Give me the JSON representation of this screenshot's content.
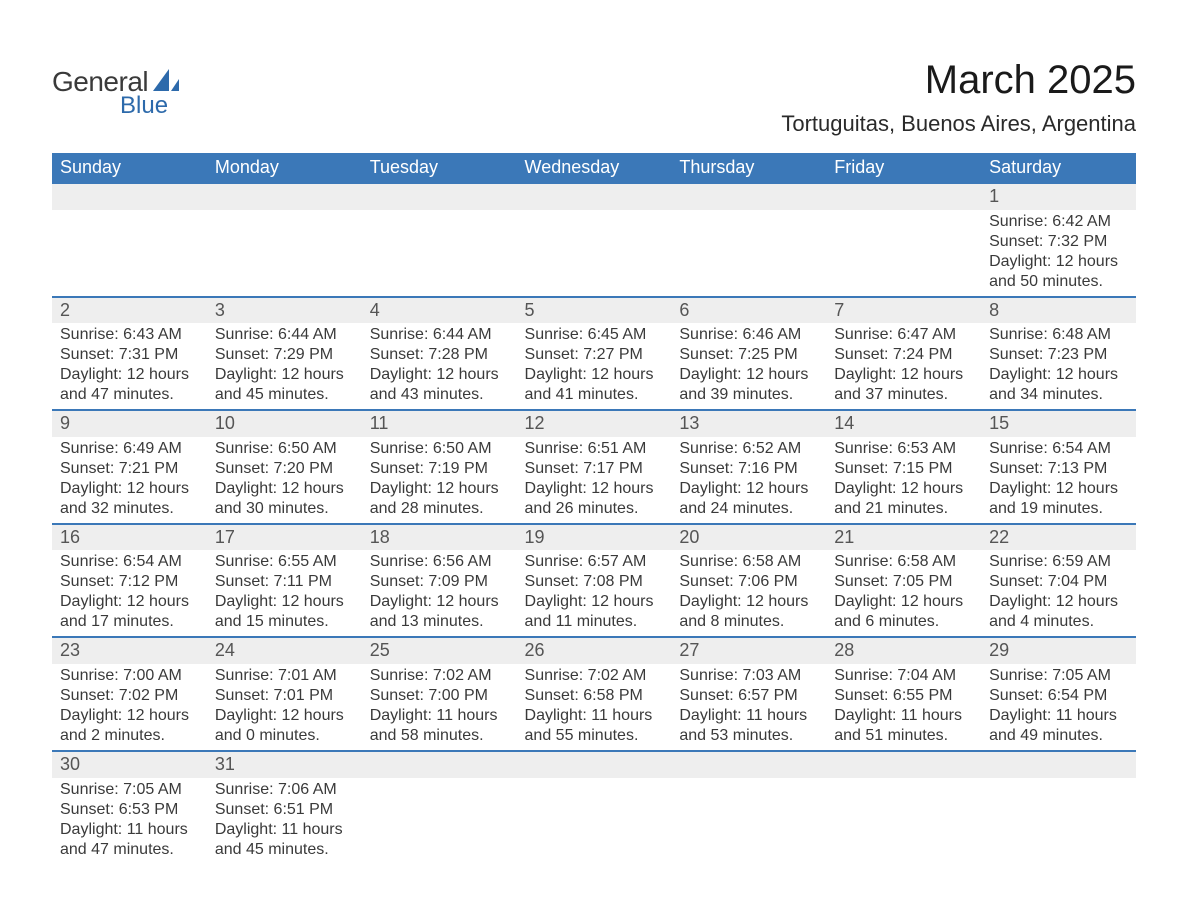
{
  "logo": {
    "word1": "General",
    "word2": "Blue",
    "sail_color": "#2d6aab"
  },
  "title": "March 2025",
  "location": "Tortuguitas, Buenos Aires, Argentina",
  "colors": {
    "header_bg": "#3b78b8",
    "header_text": "#ffffff",
    "daynum_bg": "#eeeeee",
    "rule": "#3b78b8",
    "body_text": "#3a3a3a"
  },
  "daynames": [
    "Sunday",
    "Monday",
    "Tuesday",
    "Wednesday",
    "Thursday",
    "Friday",
    "Saturday"
  ],
  "weeks": [
    [
      null,
      null,
      null,
      null,
      null,
      null,
      {
        "n": "1",
        "sunrise": "Sunrise: 6:42 AM",
        "sunset": "Sunset: 7:32 PM",
        "dl1": "Daylight: 12 hours",
        "dl2": "and 50 minutes."
      }
    ],
    [
      {
        "n": "2",
        "sunrise": "Sunrise: 6:43 AM",
        "sunset": "Sunset: 7:31 PM",
        "dl1": "Daylight: 12 hours",
        "dl2": "and 47 minutes."
      },
      {
        "n": "3",
        "sunrise": "Sunrise: 6:44 AM",
        "sunset": "Sunset: 7:29 PM",
        "dl1": "Daylight: 12 hours",
        "dl2": "and 45 minutes."
      },
      {
        "n": "4",
        "sunrise": "Sunrise: 6:44 AM",
        "sunset": "Sunset: 7:28 PM",
        "dl1": "Daylight: 12 hours",
        "dl2": "and 43 minutes."
      },
      {
        "n": "5",
        "sunrise": "Sunrise: 6:45 AM",
        "sunset": "Sunset: 7:27 PM",
        "dl1": "Daylight: 12 hours",
        "dl2": "and 41 minutes."
      },
      {
        "n": "6",
        "sunrise": "Sunrise: 6:46 AM",
        "sunset": "Sunset: 7:25 PM",
        "dl1": "Daylight: 12 hours",
        "dl2": "and 39 minutes."
      },
      {
        "n": "7",
        "sunrise": "Sunrise: 6:47 AM",
        "sunset": "Sunset: 7:24 PM",
        "dl1": "Daylight: 12 hours",
        "dl2": "and 37 minutes."
      },
      {
        "n": "8",
        "sunrise": "Sunrise: 6:48 AM",
        "sunset": "Sunset: 7:23 PM",
        "dl1": "Daylight: 12 hours",
        "dl2": "and 34 minutes."
      }
    ],
    [
      {
        "n": "9",
        "sunrise": "Sunrise: 6:49 AM",
        "sunset": "Sunset: 7:21 PM",
        "dl1": "Daylight: 12 hours",
        "dl2": "and 32 minutes."
      },
      {
        "n": "10",
        "sunrise": "Sunrise: 6:50 AM",
        "sunset": "Sunset: 7:20 PM",
        "dl1": "Daylight: 12 hours",
        "dl2": "and 30 minutes."
      },
      {
        "n": "11",
        "sunrise": "Sunrise: 6:50 AM",
        "sunset": "Sunset: 7:19 PM",
        "dl1": "Daylight: 12 hours",
        "dl2": "and 28 minutes."
      },
      {
        "n": "12",
        "sunrise": "Sunrise: 6:51 AM",
        "sunset": "Sunset: 7:17 PM",
        "dl1": "Daylight: 12 hours",
        "dl2": "and 26 minutes."
      },
      {
        "n": "13",
        "sunrise": "Sunrise: 6:52 AM",
        "sunset": "Sunset: 7:16 PM",
        "dl1": "Daylight: 12 hours",
        "dl2": "and 24 minutes."
      },
      {
        "n": "14",
        "sunrise": "Sunrise: 6:53 AM",
        "sunset": "Sunset: 7:15 PM",
        "dl1": "Daylight: 12 hours",
        "dl2": "and 21 minutes."
      },
      {
        "n": "15",
        "sunrise": "Sunrise: 6:54 AM",
        "sunset": "Sunset: 7:13 PM",
        "dl1": "Daylight: 12 hours",
        "dl2": "and 19 minutes."
      }
    ],
    [
      {
        "n": "16",
        "sunrise": "Sunrise: 6:54 AM",
        "sunset": "Sunset: 7:12 PM",
        "dl1": "Daylight: 12 hours",
        "dl2": "and 17 minutes."
      },
      {
        "n": "17",
        "sunrise": "Sunrise: 6:55 AM",
        "sunset": "Sunset: 7:11 PM",
        "dl1": "Daylight: 12 hours",
        "dl2": "and 15 minutes."
      },
      {
        "n": "18",
        "sunrise": "Sunrise: 6:56 AM",
        "sunset": "Sunset: 7:09 PM",
        "dl1": "Daylight: 12 hours",
        "dl2": "and 13 minutes."
      },
      {
        "n": "19",
        "sunrise": "Sunrise: 6:57 AM",
        "sunset": "Sunset: 7:08 PM",
        "dl1": "Daylight: 12 hours",
        "dl2": "and 11 minutes."
      },
      {
        "n": "20",
        "sunrise": "Sunrise: 6:58 AM",
        "sunset": "Sunset: 7:06 PM",
        "dl1": "Daylight: 12 hours",
        "dl2": "and 8 minutes."
      },
      {
        "n": "21",
        "sunrise": "Sunrise: 6:58 AM",
        "sunset": "Sunset: 7:05 PM",
        "dl1": "Daylight: 12 hours",
        "dl2": "and 6 minutes."
      },
      {
        "n": "22",
        "sunrise": "Sunrise: 6:59 AM",
        "sunset": "Sunset: 7:04 PM",
        "dl1": "Daylight: 12 hours",
        "dl2": "and 4 minutes."
      }
    ],
    [
      {
        "n": "23",
        "sunrise": "Sunrise: 7:00 AM",
        "sunset": "Sunset: 7:02 PM",
        "dl1": "Daylight: 12 hours",
        "dl2": "and 2 minutes."
      },
      {
        "n": "24",
        "sunrise": "Sunrise: 7:01 AM",
        "sunset": "Sunset: 7:01 PM",
        "dl1": "Daylight: 12 hours",
        "dl2": "and 0 minutes."
      },
      {
        "n": "25",
        "sunrise": "Sunrise: 7:02 AM",
        "sunset": "Sunset: 7:00 PM",
        "dl1": "Daylight: 11 hours",
        "dl2": "and 58 minutes."
      },
      {
        "n": "26",
        "sunrise": "Sunrise: 7:02 AM",
        "sunset": "Sunset: 6:58 PM",
        "dl1": "Daylight: 11 hours",
        "dl2": "and 55 minutes."
      },
      {
        "n": "27",
        "sunrise": "Sunrise: 7:03 AM",
        "sunset": "Sunset: 6:57 PM",
        "dl1": "Daylight: 11 hours",
        "dl2": "and 53 minutes."
      },
      {
        "n": "28",
        "sunrise": "Sunrise: 7:04 AM",
        "sunset": "Sunset: 6:55 PM",
        "dl1": "Daylight: 11 hours",
        "dl2": "and 51 minutes."
      },
      {
        "n": "29",
        "sunrise": "Sunrise: 7:05 AM",
        "sunset": "Sunset: 6:54 PM",
        "dl1": "Daylight: 11 hours",
        "dl2": "and 49 minutes."
      }
    ],
    [
      {
        "n": "30",
        "sunrise": "Sunrise: 7:05 AM",
        "sunset": "Sunset: 6:53 PM",
        "dl1": "Daylight: 11 hours",
        "dl2": "and 47 minutes."
      },
      {
        "n": "31",
        "sunrise": "Sunrise: 7:06 AM",
        "sunset": "Sunset: 6:51 PM",
        "dl1": "Daylight: 11 hours",
        "dl2": "and 45 minutes."
      },
      null,
      null,
      null,
      null,
      null
    ]
  ]
}
